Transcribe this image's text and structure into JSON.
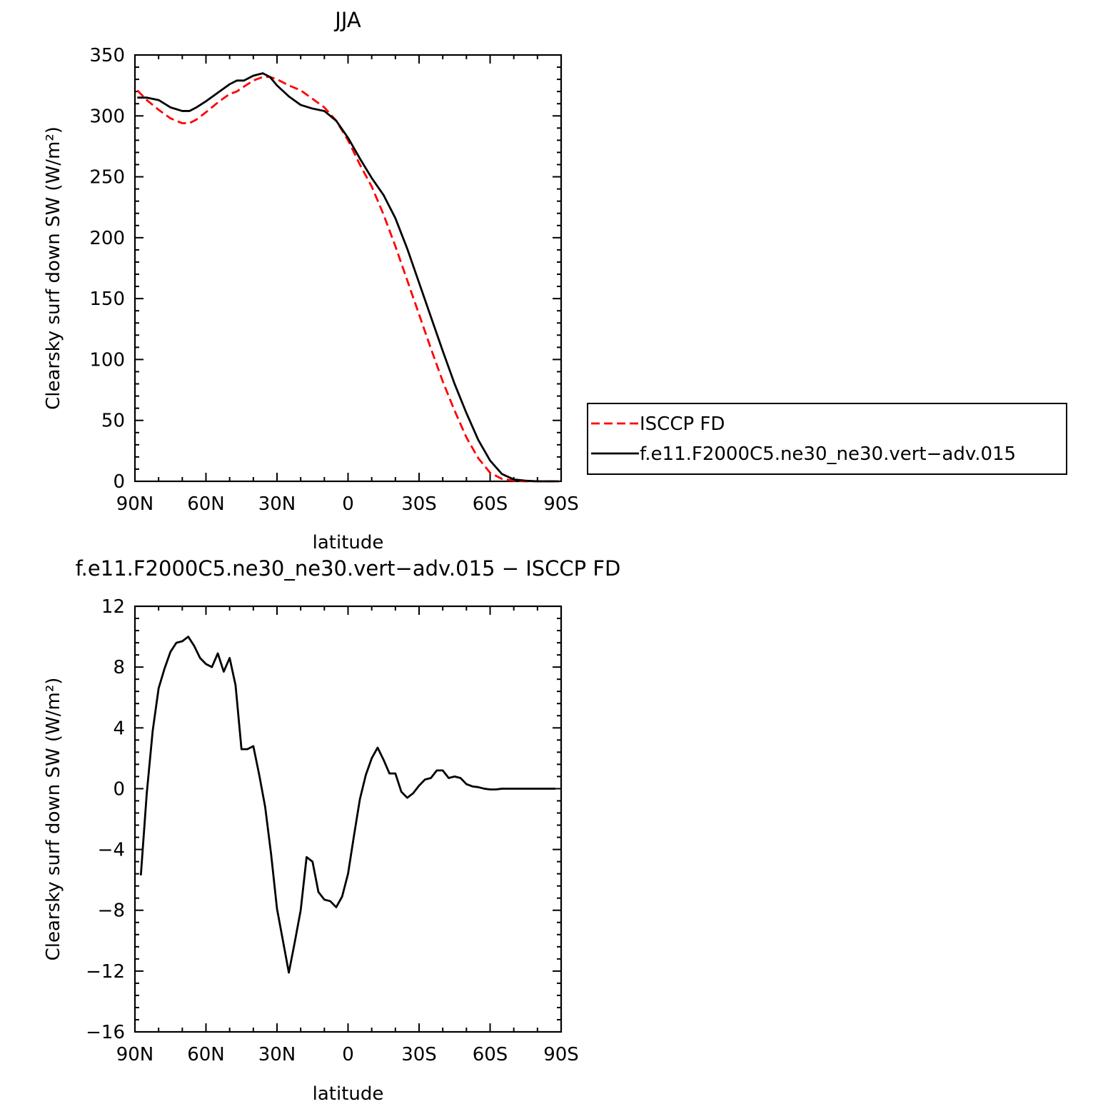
{
  "chart_data": [
    {
      "type": "line",
      "title": "JJA",
      "xlabel": "latitude",
      "ylabel": "Clearsky surf down SW (W/m²)",
      "xlim": [
        90,
        -90
      ],
      "ylim": [
        0,
        350
      ],
      "xticks": [
        90,
        60,
        30,
        0,
        -30,
        -60,
        -90
      ],
      "xtick_labels": [
        "90N",
        "60N",
        "30N",
        "0",
        "30S",
        "60S",
        "90S"
      ],
      "yticks": [
        0,
        50,
        100,
        150,
        200,
        250,
        300,
        350
      ],
      "ytick_labels": [
        "0",
        "50",
        "100",
        "150",
        "200",
        "250",
        "300",
        "350"
      ],
      "grid": false,
      "legend_position": "right",
      "series": [
        {
          "name": "ISCCP FD",
          "color": "#ff0000",
          "dash": "dashed",
          "x": [
            89,
            85,
            80,
            75,
            70,
            67,
            64,
            60,
            55,
            50,
            47,
            44,
            40,
            36,
            33,
            30,
            25,
            20,
            15,
            10,
            5,
            0,
            -5,
            -10,
            -15,
            -20,
            -25,
            -30,
            -35,
            -40,
            -45,
            -50,
            -55,
            -60,
            -65,
            -70,
            -75,
            -80,
            -85,
            -89
          ],
          "y": [
            321,
            313,
            305,
            298,
            294,
            294,
            297,
            303,
            311,
            318,
            320,
            324,
            329,
            332,
            332,
            330,
            325,
            321,
            314,
            307,
            296,
            280,
            260,
            242,
            219,
            193,
            165,
            137,
            109,
            82,
            58,
            36,
            19,
            7,
            2,
            0.5,
            0,
            0,
            0,
            0
          ]
        },
        {
          "name": "f.e11.F2000C5.ne30_ne30.vert−adv.015",
          "color": "#000000",
          "dash": "solid",
          "x": [
            89,
            85,
            80,
            75,
            70,
            67,
            64,
            60,
            55,
            50,
            47,
            44,
            40,
            36,
            33,
            30,
            25,
            20,
            15,
            10,
            5,
            0,
            -5,
            -10,
            -15,
            -20,
            -25,
            -30,
            -35,
            -40,
            -45,
            -50,
            -55,
            -60,
            -65,
            -70,
            -75,
            -80,
            -85,
            -89
          ],
          "y": [
            315,
            315,
            313,
            307,
            304,
            304,
            307,
            312,
            319,
            326,
            329,
            329,
            333,
            335,
            332,
            325,
            316,
            309,
            306,
            304,
            296,
            282,
            265,
            249,
            235,
            216,
            191,
            163,
            135,
            107,
            80,
            56,
            34,
            17,
            6,
            1.5,
            0.5,
            0,
            0,
            0
          ]
        }
      ]
    },
    {
      "type": "line",
      "title": "f.e11.F2000C5.ne30_ne30.vert−adv.015 − ISCCP FD",
      "xlabel": "latitude",
      "ylabel": "Clearsky surf down SW (W/m²)",
      "xlim": [
        90,
        -90
      ],
      "ylim": [
        -16,
        12
      ],
      "xticks": [
        90,
        60,
        30,
        0,
        -30,
        -60,
        -90
      ],
      "xtick_labels": [
        "90N",
        "60N",
        "30N",
        "0",
        "30S",
        "60S",
        "90S"
      ],
      "yticks": [
        -16,
        -12,
        -8,
        -4,
        0,
        4,
        8,
        12
      ],
      "ytick_labels": [
        "−16",
        "−12",
        "−8",
        "−4",
        "0",
        "4",
        "8",
        "12"
      ],
      "grid": false,
      "series": [
        {
          "color": "#000000",
          "dash": "solid",
          "x": [
            87.5,
            85,
            82.5,
            80,
            77.5,
            75,
            72.5,
            70,
            67.5,
            65,
            62.5,
            60,
            57.5,
            55,
            52.5,
            50,
            47.5,
            45,
            42.5,
            40,
            37.5,
            35,
            32.5,
            30,
            27.5,
            25,
            22.5,
            20,
            17.5,
            15,
            12.5,
            10,
            7.5,
            5,
            2.5,
            0,
            -2.5,
            -5,
            -7.5,
            -10,
            -12.5,
            -15,
            -17.5,
            -20,
            -22.5,
            -25,
            -27.5,
            -30,
            -32.5,
            -35,
            -37.5,
            -40,
            -42.5,
            -45,
            -47.5,
            -50,
            -52.5,
            -55,
            -57.5,
            -60,
            -62.5,
            -65,
            -67.5,
            -70,
            -72.5,
            -75,
            -77.5,
            -80,
            -82.5,
            -85,
            -87.5
          ],
          "y": [
            -5.7,
            -0.3,
            3.8,
            6.6,
            7.9,
            9.0,
            9.6,
            9.7,
            10.0,
            9.4,
            8.6,
            8.2,
            8.0,
            8.9,
            7.7,
            8.6,
            6.8,
            2.6,
            2.6,
            2.8,
            0.9,
            -1.2,
            -4.3,
            -7.9,
            -10.0,
            -12.1,
            -10.1,
            -8.0,
            -4.5,
            -4.8,
            -6.8,
            -7.3,
            -7.4,
            -7.8,
            -7.1,
            -5.6,
            -3.1,
            -0.7,
            0.9,
            2.0,
            2.7,
            1.9,
            1.0,
            1.0,
            -0.2,
            -0.6,
            -0.3,
            0.2,
            0.6,
            0.7,
            1.2,
            1.2,
            0.7,
            0.8,
            0.7,
            0.3,
            0.15,
            0.1,
            0.0,
            -0.05,
            -0.05,
            0.0,
            0.0,
            0.0,
            0.0,
            0.0,
            0.0,
            0.0,
            0.0,
            0.0,
            0.0
          ]
        }
      ]
    }
  ]
}
